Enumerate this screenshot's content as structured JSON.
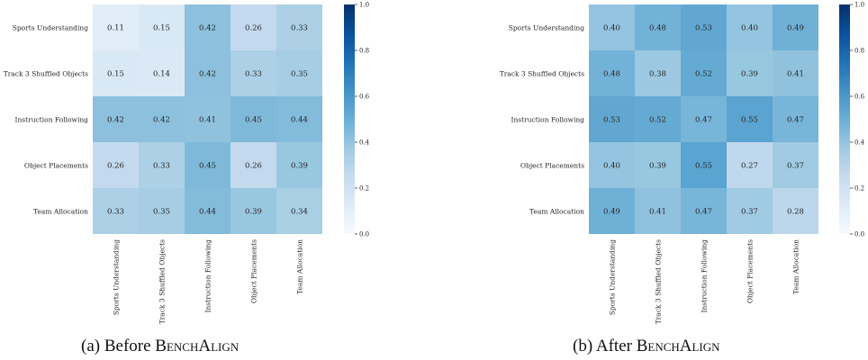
{
  "chart_data": [
    {
      "type": "heatmap",
      "rows": [
        "Sports Understanding",
        "Track 3 Shuffled Objects",
        "Instruction Following",
        "Object Placements",
        "Team Allocation"
      ],
      "columns": [
        "Sports Understanding",
        "Track 3 Shuffled Objects",
        "Instruction Following",
        "Object Placements",
        "Team Allocation"
      ],
      "values": [
        [
          0.11,
          0.15,
          0.42,
          0.26,
          0.33
        ],
        [
          0.15,
          0.14,
          0.42,
          0.33,
          0.35
        ],
        [
          0.42,
          0.42,
          0.41,
          0.45,
          0.44
        ],
        [
          0.26,
          0.33,
          0.45,
          0.26,
          0.39
        ],
        [
          0.33,
          0.35,
          0.44,
          0.39,
          0.34
        ]
      ],
      "value_format": "0.00",
      "colorscale": "Blues",
      "colorbar": {
        "min": 0.0,
        "max": 1.0,
        "ticks": [
          "0.0",
          "0.2",
          "0.4",
          "0.6",
          "0.8",
          "1.0"
        ]
      },
      "caption_prefix": "(a) Before ",
      "caption_name": "BenchAlign"
    },
    {
      "type": "heatmap",
      "rows": [
        "Sports Understanding",
        "Track 3 Shuffled Objects",
        "Instruction Following",
        "Object Placements",
        "Team Allocation"
      ],
      "columns": [
        "Sports Understanding",
        "Track 3 Shuffled Objects",
        "Instruction Following",
        "Object Placements",
        "Team Allocation"
      ],
      "values": [
        [
          0.4,
          0.48,
          0.53,
          0.4,
          0.49
        ],
        [
          0.48,
          0.38,
          0.52,
          0.39,
          0.41
        ],
        [
          0.53,
          0.52,
          0.47,
          0.55,
          0.47
        ],
        [
          0.4,
          0.39,
          0.55,
          0.27,
          0.37
        ],
        [
          0.49,
          0.41,
          0.47,
          0.37,
          0.28
        ]
      ],
      "value_format": "0.00",
      "colorscale": "Blues",
      "colorbar": {
        "min": 0.0,
        "max": 1.0,
        "ticks": [
          "0.0",
          "0.2",
          "0.4",
          "0.6",
          "0.8",
          "1.0"
        ]
      },
      "caption_prefix": "(b) After ",
      "caption_name": "BenchAlign"
    }
  ]
}
